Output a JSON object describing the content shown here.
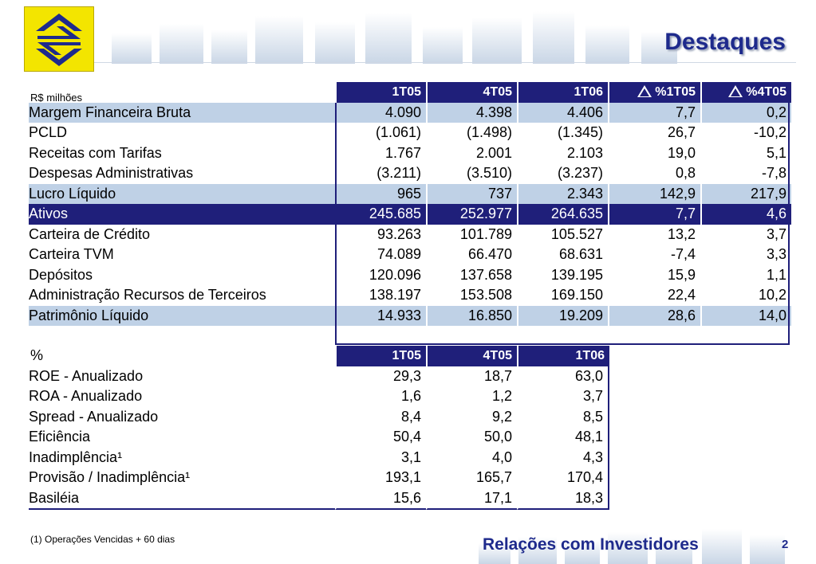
{
  "header": {
    "title": "Destaques"
  },
  "table1": {
    "unit": "R$ milhões",
    "columns": [
      "1T05",
      "4T05",
      "1T06",
      "%1T05",
      "%4T05"
    ],
    "rows": [
      {
        "label": "Margem Financeira Bruta",
        "v": [
          "4.090",
          "4.398",
          "4.406",
          "7,7",
          "0,2"
        ],
        "style": "hl"
      },
      {
        "label": "PCLD",
        "v": [
          "(1.061)",
          "(1.498)",
          "(1.345)",
          "26,7",
          "-10,2"
        ],
        "style": ""
      },
      {
        "label": "Receitas com Tarifas",
        "v": [
          "1.767",
          "2.001",
          "2.103",
          "19,0",
          "5,1"
        ],
        "style": ""
      },
      {
        "label": "Despesas Administrativas",
        "v": [
          "(3.211)",
          "(3.510)",
          "(3.237)",
          "0,8",
          "-7,8"
        ],
        "style": ""
      },
      {
        "label": "Lucro Líquido",
        "v": [
          "965",
          "737",
          "2.343",
          "142,9",
          "217,9"
        ],
        "style": "hl"
      },
      {
        "label": "Ativos",
        "v": [
          "245.685",
          "252.977",
          "264.635",
          "7,7",
          "4,6"
        ],
        "style": "dark"
      },
      {
        "label": "Carteira de Crédito",
        "v": [
          "93.263",
          "101.789",
          "105.527",
          "13,2",
          "3,7"
        ],
        "style": ""
      },
      {
        "label": "Carteira TVM",
        "v": [
          "74.089",
          "66.470",
          "68.631",
          "-7,4",
          "3,3"
        ],
        "style": ""
      },
      {
        "label": "Depósitos",
        "v": [
          "120.096",
          "137.658",
          "139.195",
          "15,9",
          "1,1"
        ],
        "style": ""
      },
      {
        "label": "Administração Recursos de Terceiros",
        "v": [
          "138.197",
          "153.508",
          "169.150",
          "22,4",
          "10,2"
        ],
        "style": ""
      },
      {
        "label": "Patrimônio Líquido",
        "v": [
          "14.933",
          "16.850",
          "19.209",
          "28,6",
          "14,0"
        ],
        "style": "hl"
      }
    ]
  },
  "table2": {
    "unit": "%",
    "columns": [
      "1T05",
      "4T05",
      "1T06"
    ],
    "rows": [
      {
        "label": "ROE - Anualizado",
        "v": [
          "29,3",
          "18,7",
          "63,0"
        ]
      },
      {
        "label": "ROA - Anualizado",
        "v": [
          "1,6",
          "1,2",
          "3,7"
        ]
      },
      {
        "label": "Spread - Anualizado",
        "v": [
          "8,4",
          "9,2",
          "8,5"
        ]
      },
      {
        "label": "Eficiência",
        "v": [
          "50,4",
          "50,0",
          "48,1"
        ]
      },
      {
        "label": "Inadimplência¹",
        "v": [
          "3,1",
          "4,0",
          "4,3"
        ]
      },
      {
        "label": "Provisão / Inadimplência¹",
        "v": [
          "193,1",
          "165,7",
          "170,4"
        ]
      },
      {
        "label": "Basiléia",
        "v": [
          "15,6",
          "17,1",
          "18,3"
        ]
      }
    ]
  },
  "footer": {
    "note": "(1) Operações Vencidas + 60 dias",
    "brand": "Relações com Investidores",
    "page": "2"
  },
  "colors": {
    "navy": "#1f1f7a",
    "highlight": "#bfd1e6",
    "logo_yellow": "#f3e500"
  },
  "icons": {
    "logo": "banco-do-brasil-logo-icon",
    "delta": "delta-triangle-icon"
  }
}
